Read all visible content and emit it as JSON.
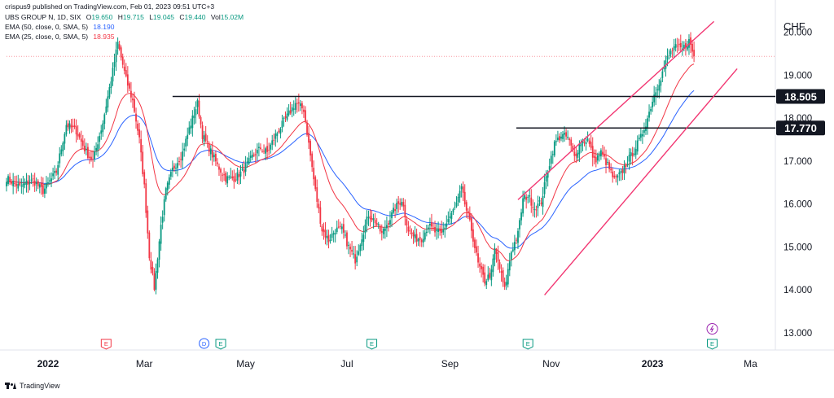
{
  "header": {
    "published": "crispus9 published on TradingView.com, Feb 01, 2023 09:51 UTC+3",
    "symbol": "UBS GROUP N, 1D, SIX",
    "open_label": "O",
    "open": "19.650",
    "high_label": "H",
    "high": "19.715",
    "low_label": "L",
    "low": "19.045",
    "close_label": "C",
    "close": "19.440",
    "vol_label": "Vol",
    "vol": "15.02M",
    "ema50_label": "EMA (50, close, 0, SMA, 5)",
    "ema50_value": "18.190",
    "ema25_label": "EMA (25, close, 0, SMA, 5)",
    "ema25_value": "18.935"
  },
  "footer": {
    "brand": "TradingView"
  },
  "colors": {
    "up": "#089981",
    "down": "#f23645",
    "ema50": "#2962ff",
    "ema25": "#f23645",
    "channel": "#f23672",
    "level": "#131722",
    "axis_text": "#131722"
  },
  "chart_data": {
    "type": "candlestick",
    "currency": "CHF",
    "y_ticks": [
      "13.000",
      "14.000",
      "15.000",
      "16.000",
      "17.000",
      "18.000",
      "19.000",
      "20.000"
    ],
    "ylim": [
      12.6,
      20.75
    ],
    "x_ticks": [
      {
        "label": "2022",
        "bold": true,
        "x": 3.0
      },
      {
        "label": "Mar",
        "bold": false,
        "x": 61.0
      },
      {
        "label": "May",
        "bold": false,
        "x": 122.0
      },
      {
        "label": "Jul",
        "bold": false,
        "x": 183.0
      },
      {
        "label": "Sep",
        "bold": false,
        "x": 245.0
      },
      {
        "label": "Nov",
        "bold": false,
        "x": 306.0
      },
      {
        "label": "2023",
        "bold": true,
        "x": 367.0
      },
      {
        "label": "Ma",
        "bold": false,
        "x": 426.0
      }
    ],
    "xlim": [
      -22,
      441
    ],
    "levels": [
      {
        "label": "18.505",
        "value": 18.505,
        "x_start": 78
      },
      {
        "label": "17.770",
        "value": 17.77,
        "x_start": 285
      }
    ],
    "channel": [
      {
        "x1": 286.0,
        "y1": 16.1,
        "x2": 404.0,
        "y2": 20.25
      },
      {
        "x1": 302.0,
        "y1": 13.88,
        "x2": 418.0,
        "y2": 19.15
      }
    ],
    "last_close": 19.44,
    "events": [
      {
        "type": "E",
        "color": "#f23645",
        "x": 38.0
      },
      {
        "type": "D",
        "color": "#2962ff",
        "x": 97.0
      },
      {
        "type": "E",
        "color": "#089981",
        "x": 107.0
      },
      {
        "type": "E",
        "color": "#089981",
        "x": 198.0
      },
      {
        "type": "E",
        "color": "#089981",
        "x": 292.0
      },
      {
        "type": "E",
        "color": "#089981",
        "x": 403.0
      },
      {
        "type": "split",
        "color": "#9c27b0",
        "x": 403.0
      }
    ],
    "series": [
      {
        "name": "UBS GROUP N",
        "style": "candles",
        "close_anchors": [
          [
            -22,
            16.6
          ],
          [
            -14,
            16.4
          ],
          [
            -6,
            16.55
          ],
          [
            0,
            16.3
          ],
          [
            8,
            16.75
          ],
          [
            14,
            17.85
          ],
          [
            20,
            17.7
          ],
          [
            26,
            17.2
          ],
          [
            30,
            17.0
          ],
          [
            36,
            17.9
          ],
          [
            42,
            19.1
          ],
          [
            45,
            19.75
          ],
          [
            50,
            18.9
          ],
          [
            54,
            18.4
          ],
          [
            58,
            17.5
          ],
          [
            61,
            16.4
          ],
          [
            64,
            14.8
          ],
          [
            67,
            14.05
          ],
          [
            71,
            15.5
          ],
          [
            74,
            16.3
          ],
          [
            78,
            16.8
          ],
          [
            84,
            17.2
          ],
          [
            88,
            17.75
          ],
          [
            93,
            18.35
          ],
          [
            96,
            17.6
          ],
          [
            100,
            17.3
          ],
          [
            105,
            16.9
          ],
          [
            110,
            16.6
          ],
          [
            115,
            16.6
          ],
          [
            120,
            16.75
          ],
          [
            126,
            17.1
          ],
          [
            131,
            17.3
          ],
          [
            135,
            17.2
          ],
          [
            140,
            17.6
          ],
          [
            144,
            17.85
          ],
          [
            148,
            18.1
          ],
          [
            152,
            18.35
          ],
          [
            157,
            18.2
          ],
          [
            160,
            17.4
          ],
          [
            164,
            16.3
          ],
          [
            168,
            15.4
          ],
          [
            172,
            15.15
          ],
          [
            176,
            15.4
          ],
          [
            180,
            15.4
          ],
          [
            184,
            15.0
          ],
          [
            188,
            14.7
          ],
          [
            192,
            15.25
          ],
          [
            196,
            15.75
          ],
          [
            200,
            15.6
          ],
          [
            204,
            15.3
          ],
          [
            208,
            15.6
          ],
          [
            212,
            15.9
          ],
          [
            216,
            16.1
          ],
          [
            220,
            15.4
          ],
          [
            224,
            15.2
          ],
          [
            228,
            15.2
          ],
          [
            232,
            15.5
          ],
          [
            236,
            15.35
          ],
          [
            240,
            15.3
          ],
          [
            244,
            15.65
          ],
          [
            248,
            15.9
          ],
          [
            252,
            16.35
          ],
          [
            254,
            16.0
          ],
          [
            258,
            15.4
          ],
          [
            262,
            14.6
          ],
          [
            266,
            14.2
          ],
          [
            270,
            14.4
          ],
          [
            272,
            14.95
          ],
          [
            275,
            14.5
          ],
          [
            278,
            14.0
          ],
          [
            282,
            14.9
          ],
          [
            286,
            15.3
          ],
          [
            289,
            16.1
          ],
          [
            292,
            16.2
          ],
          [
            296,
            15.9
          ],
          [
            300,
            16.05
          ],
          [
            304,
            16.8
          ],
          [
            308,
            17.4
          ],
          [
            312,
            17.6
          ],
          [
            316,
            17.55
          ],
          [
            320,
            17.1
          ],
          [
            324,
            17.45
          ],
          [
            328,
            17.5
          ],
          [
            332,
            17.0
          ],
          [
            336,
            17.2
          ],
          [
            340,
            16.9
          ],
          [
            344,
            16.55
          ],
          [
            348,
            16.7
          ],
          [
            352,
            17.0
          ],
          [
            356,
            17.25
          ],
          [
            360,
            17.55
          ],
          [
            364,
            18.0
          ],
          [
            368,
            18.55
          ],
          [
            372,
            18.95
          ],
          [
            376,
            19.4
          ],
          [
            380,
            19.65
          ],
          [
            385,
            19.6
          ],
          [
            389,
            19.8
          ],
          [
            392,
            19.44
          ]
        ]
      },
      {
        "name": "EMA (50, close, 0, SMA, 5)",
        "style": "line",
        "color": "#2962ff",
        "window": 50
      },
      {
        "name": "EMA (25, close, 0, SMA, 5)",
        "style": "line",
        "color": "#f23645",
        "window": 25
      }
    ]
  }
}
